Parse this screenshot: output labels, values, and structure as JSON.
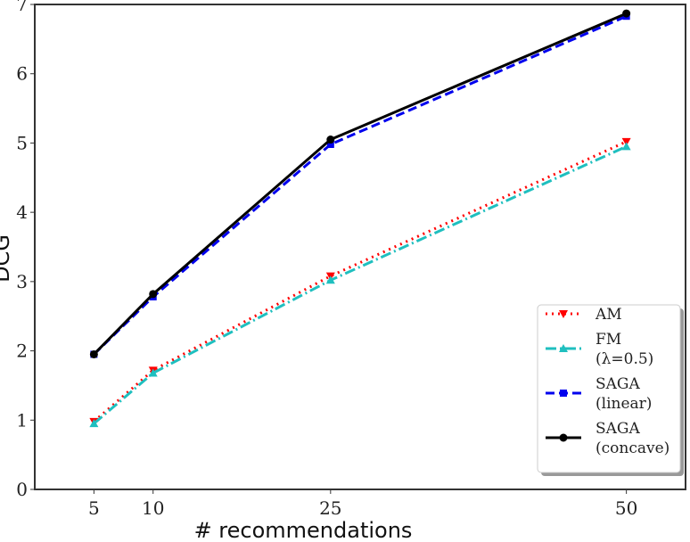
{
  "chart_data": {
    "type": "line",
    "xlabel": "# recommendations",
    "ylabel": "DCG",
    "x": [
      5,
      10,
      25,
      50
    ],
    "xticks": [
      "5",
      "10",
      "25",
      "50"
    ],
    "yticks": [
      "0",
      "1",
      "2",
      "3",
      "4",
      "5",
      "6",
      "7"
    ],
    "xlim": [
      0,
      55
    ],
    "ylim": [
      0,
      7
    ],
    "grid": false,
    "legend_position": "lower-right",
    "series": [
      {
        "name": "AM",
        "name_line2": "",
        "values": [
          0.98,
          1.72,
          3.08,
          5.02
        ],
        "color": "#ff0000",
        "dash": "dotted",
        "marker": "triangle-down"
      },
      {
        "name": "FM",
        "name_line2": "(λ=0.5)",
        "values": [
          0.95,
          1.68,
          3.02,
          4.95
        ],
        "color": "#1fbfbf",
        "dash": "dashdot",
        "marker": "triangle-up"
      },
      {
        "name": "SAGA",
        "name_line2": "(linear)",
        "values": [
          1.95,
          2.78,
          4.98,
          6.83
        ],
        "color": "#0000ee",
        "dash": "dashed",
        "marker": "square"
      },
      {
        "name": "SAGA",
        "name_line2": "(concave)",
        "values": [
          1.95,
          2.82,
          5.05,
          6.87
        ],
        "color": "#000000",
        "dash": "solid",
        "marker": "circle"
      }
    ]
  }
}
